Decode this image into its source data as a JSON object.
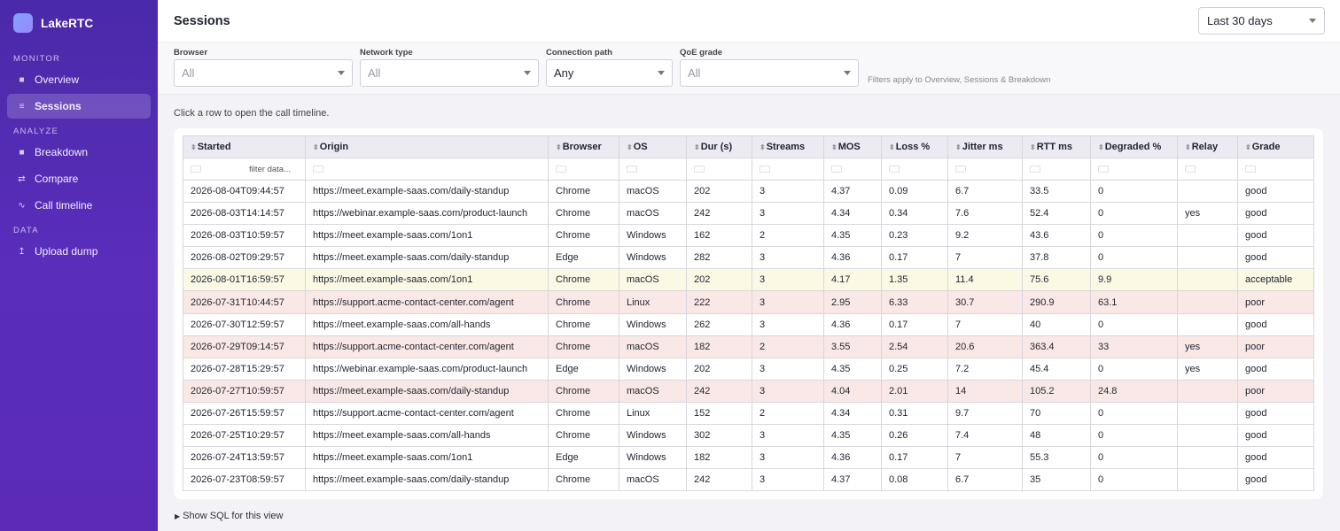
{
  "app": {
    "name": "LakeRTC"
  },
  "sidebar": {
    "sections": [
      {
        "label": "MONITOR",
        "items": [
          {
            "label": "Overview",
            "icon": "square-icon",
            "active": false
          },
          {
            "label": "Sessions",
            "icon": "list-icon",
            "active": true
          }
        ]
      },
      {
        "label": "ANALYZE",
        "items": [
          {
            "label": "Breakdown",
            "icon": "square-icon",
            "active": false
          },
          {
            "label": "Compare",
            "icon": "swap-icon",
            "active": false
          },
          {
            "label": "Call timeline",
            "icon": "wave-icon",
            "active": false
          }
        ]
      },
      {
        "label": "DATA",
        "items": [
          {
            "label": "Upload dump",
            "icon": "upload-icon",
            "active": false
          }
        ]
      }
    ]
  },
  "header": {
    "title": "Sessions",
    "range": "Last 30 days"
  },
  "filters": {
    "browser": {
      "label": "Browser",
      "value": "All"
    },
    "network": {
      "label": "Network type",
      "value": "All"
    },
    "path": {
      "label": "Connection path",
      "value": "Any"
    },
    "qoe": {
      "label": "QoE grade",
      "value": "All"
    },
    "note": "Filters apply to Overview, Sessions & Breakdown"
  },
  "hint": "Click a row to open the call timeline.",
  "table": {
    "columns": [
      "Started",
      "Origin",
      "Browser",
      "OS",
      "Dur (s)",
      "Streams",
      "MOS",
      "Loss %",
      "Jitter ms",
      "RTT ms",
      "Degraded %",
      "Relay",
      "Grade"
    ],
    "filter_placeholder": "filter data...",
    "rows": [
      {
        "cells": [
          "2026-08-04T09:44:57",
          "https://meet.example-saas.com/daily-standup",
          "Chrome",
          "macOS",
          "202",
          "3",
          "4.37",
          "0.09",
          "6.7",
          "33.5",
          "0",
          "",
          "good"
        ],
        "status": "good"
      },
      {
        "cells": [
          "2026-08-03T14:14:57",
          "https://webinar.example-saas.com/product-launch",
          "Chrome",
          "macOS",
          "242",
          "3",
          "4.34",
          "0.34",
          "7.6",
          "52.4",
          "0",
          "yes",
          "good"
        ],
        "status": "good"
      },
      {
        "cells": [
          "2026-08-03T10:59:57",
          "https://meet.example-saas.com/1on1",
          "Chrome",
          "Windows",
          "162",
          "2",
          "4.35",
          "0.23",
          "9.2",
          "43.6",
          "0",
          "",
          "good"
        ],
        "status": "good"
      },
      {
        "cells": [
          "2026-08-02T09:29:57",
          "https://meet.example-saas.com/daily-standup",
          "Edge",
          "Windows",
          "282",
          "3",
          "4.36",
          "0.17",
          "7",
          "37.8",
          "0",
          "",
          "good"
        ],
        "status": "good"
      },
      {
        "cells": [
          "2026-08-01T16:59:57",
          "https://meet.example-saas.com/1on1",
          "Chrome",
          "macOS",
          "202",
          "3",
          "4.17",
          "1.35",
          "11.4",
          "75.6",
          "9.9",
          "",
          "acceptable"
        ],
        "status": "acceptable"
      },
      {
        "cells": [
          "2026-07-31T10:44:57",
          "https://support.acme-contact-center.com/agent",
          "Chrome",
          "Linux",
          "222",
          "3",
          "2.95",
          "6.33",
          "30.7",
          "290.9",
          "63.1",
          "",
          "poor"
        ],
        "status": "poor"
      },
      {
        "cells": [
          "2026-07-30T12:59:57",
          "https://meet.example-saas.com/all-hands",
          "Chrome",
          "Windows",
          "262",
          "3",
          "4.36",
          "0.17",
          "7",
          "40",
          "0",
          "",
          "good"
        ],
        "status": "good"
      },
      {
        "cells": [
          "2026-07-29T09:14:57",
          "https://support.acme-contact-center.com/agent",
          "Chrome",
          "macOS",
          "182",
          "2",
          "3.55",
          "2.54",
          "20.6",
          "363.4",
          "33",
          "yes",
          "poor"
        ],
        "status": "poor"
      },
      {
        "cells": [
          "2026-07-28T15:29:57",
          "https://webinar.example-saas.com/product-launch",
          "Edge",
          "Windows",
          "202",
          "3",
          "4.35",
          "0.25",
          "7.2",
          "45.4",
          "0",
          "yes",
          "good"
        ],
        "status": "good"
      },
      {
        "cells": [
          "2026-07-27T10:59:57",
          "https://meet.example-saas.com/daily-standup",
          "Chrome",
          "macOS",
          "242",
          "3",
          "4.04",
          "2.01",
          "14",
          "105.2",
          "24.8",
          "",
          "poor"
        ],
        "status": "poor"
      },
      {
        "cells": [
          "2026-07-26T15:59:57",
          "https://support.acme-contact-center.com/agent",
          "Chrome",
          "Linux",
          "152",
          "2",
          "4.34",
          "0.31",
          "9.7",
          "70",
          "0",
          "",
          "good"
        ],
        "status": "good"
      },
      {
        "cells": [
          "2026-07-25T10:29:57",
          "https://meet.example-saas.com/all-hands",
          "Chrome",
          "Windows",
          "302",
          "3",
          "4.35",
          "0.26",
          "7.4",
          "48",
          "0",
          "",
          "good"
        ],
        "status": "good"
      },
      {
        "cells": [
          "2026-07-24T13:59:57",
          "https://meet.example-saas.com/1on1",
          "Edge",
          "Windows",
          "182",
          "3",
          "4.36",
          "0.17",
          "7",
          "55.3",
          "0",
          "",
          "good"
        ],
        "status": "good"
      },
      {
        "cells": [
          "2026-07-23T08:59:57",
          "https://meet.example-saas.com/daily-standup",
          "Chrome",
          "macOS",
          "242",
          "3",
          "4.37",
          "0.08",
          "6.7",
          "35",
          "0",
          "",
          "good"
        ],
        "status": "good"
      }
    ]
  },
  "sql_toggle": "Show SQL for this view",
  "colors": {
    "sidebar": "#5a2dbb",
    "acceptable_row": "#fbf8e4",
    "poor_row": "#fae8e6"
  }
}
